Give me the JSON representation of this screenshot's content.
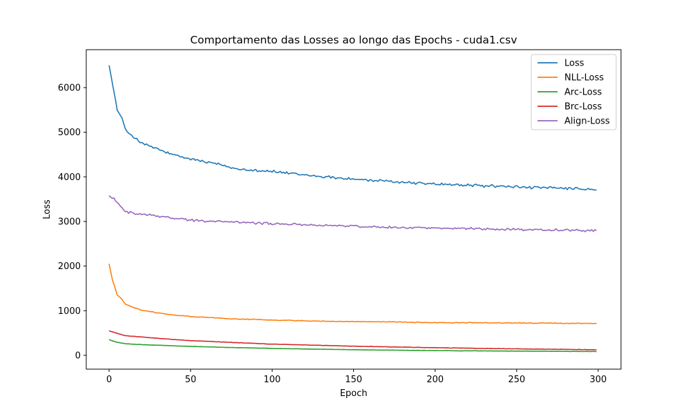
{
  "chart_data": {
    "type": "line",
    "title": "Comportamento das Losses ao longo das Epochs - cuda1.csv",
    "xlabel": "Epoch",
    "ylabel": "Loss",
    "xlim": [
      -14,
      314
    ],
    "ylim": [
      -310,
      6850
    ],
    "xticks": [
      0,
      50,
      100,
      150,
      200,
      250,
      300
    ],
    "yticks": [
      0,
      1000,
      2000,
      3000,
      4000,
      5000,
      6000
    ],
    "grid": false,
    "legend_position": "top-right",
    "x": {
      "start": 0,
      "end": 299,
      "step": 1
    },
    "series": [
      {
        "name": "Loss",
        "color": "#1f77b4",
        "key_points": [
          [
            0,
            6500
          ],
          [
            2,
            6100
          ],
          [
            5,
            5500
          ],
          [
            8,
            5300
          ],
          [
            10,
            5050
          ],
          [
            15,
            4900
          ],
          [
            20,
            4750
          ],
          [
            30,
            4620
          ],
          [
            40,
            4480
          ],
          [
            50,
            4400
          ],
          [
            60,
            4330
          ],
          [
            70,
            4260
          ],
          [
            75,
            4200
          ],
          [
            80,
            4180
          ],
          [
            100,
            4120
          ],
          [
            120,
            4040
          ],
          [
            140,
            3980
          ],
          [
            160,
            3920
          ],
          [
            180,
            3880
          ],
          [
            200,
            3840
          ],
          [
            220,
            3810
          ],
          [
            240,
            3790
          ],
          [
            260,
            3760
          ],
          [
            280,
            3740
          ],
          [
            299,
            3710
          ]
        ],
        "noise": 40
      },
      {
        "name": "NLL-Loss",
        "color": "#ff7f0e",
        "key_points": [
          [
            0,
            2050
          ],
          [
            2,
            1700
          ],
          [
            5,
            1350
          ],
          [
            8,
            1250
          ],
          [
            10,
            1150
          ],
          [
            15,
            1070
          ],
          [
            20,
            1010
          ],
          [
            30,
            950
          ],
          [
            40,
            900
          ],
          [
            50,
            870
          ],
          [
            60,
            850
          ],
          [
            75,
            820
          ],
          [
            100,
            790
          ],
          [
            125,
            770
          ],
          [
            150,
            755
          ],
          [
            175,
            745
          ],
          [
            200,
            735
          ],
          [
            250,
            725
          ],
          [
            299,
            715
          ]
        ],
        "noise": 10
      },
      {
        "name": "Arc-Loss",
        "color": "#2ca02c",
        "key_points": [
          [
            0,
            350
          ],
          [
            5,
            290
          ],
          [
            10,
            260
          ],
          [
            20,
            240
          ],
          [
            30,
            225
          ],
          [
            50,
            200
          ],
          [
            75,
            175
          ],
          [
            100,
            155
          ],
          [
            150,
            125
          ],
          [
            200,
            105
          ],
          [
            250,
            95
          ],
          [
            299,
            85
          ]
        ],
        "noise": 4
      },
      {
        "name": "Brc-Loss",
        "color": "#d62728",
        "key_points": [
          [
            0,
            550
          ],
          [
            5,
            490
          ],
          [
            10,
            440
          ],
          [
            20,
            410
          ],
          [
            30,
            380
          ],
          [
            50,
            330
          ],
          [
            75,
            290
          ],
          [
            100,
            250
          ],
          [
            150,
            205
          ],
          [
            200,
            170
          ],
          [
            250,
            145
          ],
          [
            299,
            125
          ]
        ],
        "noise": 5
      },
      {
        "name": "Align-Loss",
        "color": "#9467bd",
        "key_points": [
          [
            0,
            3580
          ],
          [
            3,
            3500
          ],
          [
            6,
            3380
          ],
          [
            8,
            3300
          ],
          [
            10,
            3220
          ],
          [
            15,
            3190
          ],
          [
            20,
            3160
          ],
          [
            30,
            3120
          ],
          [
            40,
            3070
          ],
          [
            50,
            3030
          ],
          [
            60,
            3010
          ],
          [
            75,
            2990
          ],
          [
            100,
            2950
          ],
          [
            125,
            2920
          ],
          [
            150,
            2890
          ],
          [
            175,
            2870
          ],
          [
            200,
            2850
          ],
          [
            225,
            2840
          ],
          [
            250,
            2820
          ],
          [
            275,
            2810
          ],
          [
            299,
            2790
          ]
        ],
        "noise": 30
      }
    ]
  }
}
